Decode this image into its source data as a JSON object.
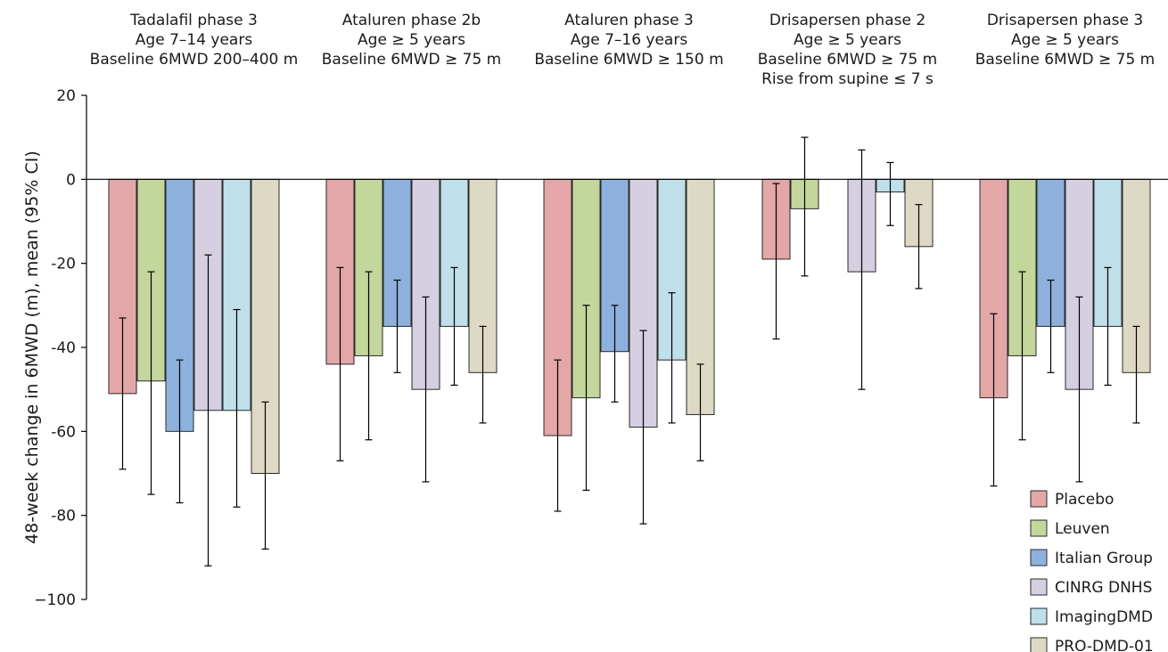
{
  "chart_data": {
    "type": "bar",
    "ylabel": "48-week change in 6MWD (m), mean (95% CI)",
    "ylim": [
      -100,
      20
    ],
    "yticks": [
      20,
      0,
      -20,
      -40,
      -60,
      -80,
      -100
    ],
    "ytick_labels": [
      "20",
      "0",
      "-20",
      "-40",
      "-60",
      "-80",
      "−100"
    ],
    "grid": false,
    "legend_position": "bottom-right",
    "series": [
      {
        "name": "Placebo",
        "color": "#e3a7a8"
      },
      {
        "name": "Leuven",
        "color": "#c3d69b"
      },
      {
        "name": "Italian Group",
        "color": "#8db1dc"
      },
      {
        "name": "CINRG DNHS",
        "color": "#d6cfe1"
      },
      {
        "name": "ImagingDMD",
        "color": "#bfdfea"
      },
      {
        "name": "PRO-DMD-01",
        "color": "#ddd9c4"
      }
    ],
    "groups": [
      {
        "title": [
          "Tadalafil phase 3",
          "Age 7–14 years",
          "Baseline 6MWD 200–400 m"
        ],
        "bars": [
          {
            "series": "Placebo",
            "mean": -51,
            "ci": [
              -69,
              -33
            ]
          },
          {
            "series": "Leuven",
            "mean": -48,
            "ci": [
              -75,
              -22
            ]
          },
          {
            "series": "Italian Group",
            "mean": -60,
            "ci": [
              -77,
              -43
            ]
          },
          {
            "series": "CINRG DNHS",
            "mean": -55,
            "ci": [
              -92,
              -18
            ]
          },
          {
            "series": "ImagingDMD",
            "mean": -55,
            "ci": [
              -78,
              -31
            ]
          },
          {
            "series": "PRO-DMD-01",
            "mean": -70,
            "ci": [
              -88,
              -53
            ]
          }
        ]
      },
      {
        "title": [
          "Ataluren phase 2b",
          "Age ≥ 5 years",
          "Baseline 6MWD ≥ 75 m"
        ],
        "bars": [
          {
            "series": "Placebo",
            "mean": -44,
            "ci": [
              -67,
              -21
            ]
          },
          {
            "series": "Leuven",
            "mean": -42,
            "ci": [
              -62,
              -22
            ]
          },
          {
            "series": "Italian Group",
            "mean": -35,
            "ci": [
              -46,
              -24
            ]
          },
          {
            "series": "CINRG DNHS",
            "mean": -50,
            "ci": [
              -72,
              -28
            ]
          },
          {
            "series": "ImagingDMD",
            "mean": -35,
            "ci": [
              -49,
              -21
            ]
          },
          {
            "series": "PRO-DMD-01",
            "mean": -46,
            "ci": [
              -58,
              -35
            ]
          }
        ]
      },
      {
        "title": [
          "Ataluren phase 3",
          "Age 7–16 years",
          "Baseline 6MWD ≥ 150 m"
        ],
        "bars": [
          {
            "series": "Placebo",
            "mean": -61,
            "ci": [
              -79,
              -43
            ]
          },
          {
            "series": "Leuven",
            "mean": -52,
            "ci": [
              -74,
              -30
            ]
          },
          {
            "series": "Italian Group",
            "mean": -41,
            "ci": [
              -53,
              -30
            ]
          },
          {
            "series": "CINRG DNHS",
            "mean": -59,
            "ci": [
              -82,
              -36
            ]
          },
          {
            "series": "ImagingDMD",
            "mean": -43,
            "ci": [
              -58,
              -27
            ]
          },
          {
            "series": "PRO-DMD-01",
            "mean": -56,
            "ci": [
              -67,
              -44
            ]
          }
        ]
      },
      {
        "title": [
          "Drisapersen phase 2",
          "Age ≥ 5 years",
          "Baseline 6MWD ≥ 75 m",
          "Rise from supine ≤ 7 s"
        ],
        "bars": [
          {
            "series": "Placebo",
            "mean": -19,
            "ci": [
              -38,
              -1
            ]
          },
          {
            "series": "Leuven",
            "mean": -7,
            "ci": [
              -23,
              10
            ]
          },
          {
            "series": "Italian Group",
            "mean": null,
            "ci": null
          },
          {
            "series": "CINRG DNHS",
            "mean": -22,
            "ci": [
              -50,
              7
            ]
          },
          {
            "series": "ImagingDMD",
            "mean": -3,
            "ci": [
              -11,
              4
            ]
          },
          {
            "series": "PRO-DMD-01",
            "mean": -16,
            "ci": [
              -26,
              -6
            ]
          }
        ]
      },
      {
        "title": [
          "Drisapersen phase 3",
          "Age ≥ 5 years",
          "Baseline 6MWD ≥ 75 m"
        ],
        "bars": [
          {
            "series": "Placebo",
            "mean": -52,
            "ci": [
              -73,
              -32
            ]
          },
          {
            "series": "Leuven",
            "mean": -42,
            "ci": [
              -62,
              -22
            ]
          },
          {
            "series": "Italian Group",
            "mean": -35,
            "ci": [
              -46,
              -24
            ]
          },
          {
            "series": "CINRG DNHS",
            "mean": -50,
            "ci": [
              -72,
              -28
            ]
          },
          {
            "series": "ImagingDMD",
            "mean": -35,
            "ci": [
              -49,
              -21
            ]
          },
          {
            "series": "PRO-DMD-01",
            "mean": -46,
            "ci": [
              -58,
              -35
            ]
          }
        ]
      }
    ]
  }
}
